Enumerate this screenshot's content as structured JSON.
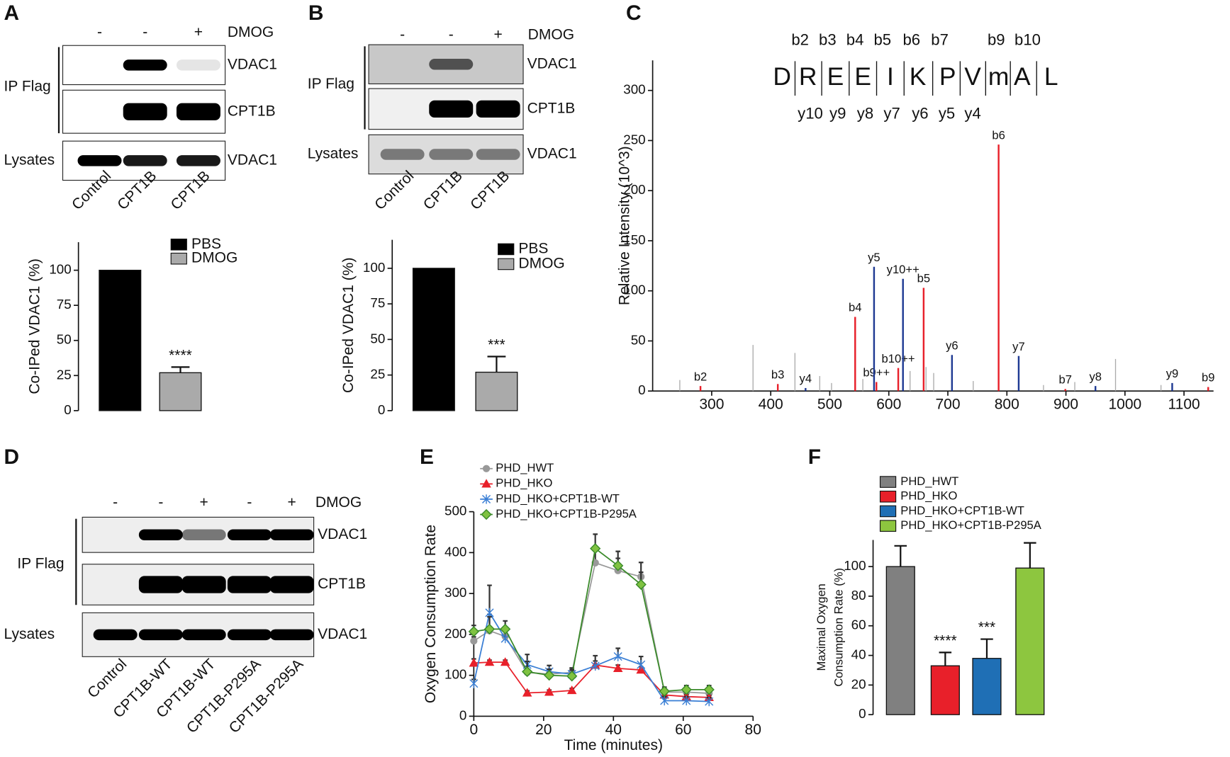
{
  "panel_labels": [
    "A",
    "B",
    "C",
    "D",
    "E",
    "F"
  ],
  "blots": [
    {
      "treatment_label": "DMOG",
      "treatments": [
        "-",
        "-",
        "+"
      ],
      "group_label": "IP Flag",
      "lysate_label": "Lysates",
      "ip_rows": [
        "VDAC1",
        "CPT1B"
      ],
      "lysate_rows": [
        "VDAC1"
      ],
      "lanes": [
        "Control",
        "CPT1B",
        "CPT1B"
      ]
    },
    {
      "treatment_label": "DMOG",
      "treatments": [
        "-",
        "-",
        "+"
      ],
      "group_label": "IP Flag",
      "lysate_label": "Lysates",
      "ip_rows": [
        "VDAC1",
        "CPT1B"
      ],
      "lysate_rows": [
        "VDAC1"
      ],
      "lanes": [
        "Control",
        "CPT1B",
        "CPT1B"
      ]
    },
    {
      "treatment_label": "DMOG",
      "treatments": [
        "-",
        "-",
        "+",
        "-",
        "+"
      ],
      "group_label": "IP Flag",
      "lysate_label": "Lysates",
      "ip_rows": [
        "VDAC1",
        "CPT1B"
      ],
      "lysate_rows": [
        "VDAC1"
      ],
      "lanes": [
        "Control",
        "CPT1B-WT",
        "CPT1B-WT",
        "CPT1B-P295A",
        "CPT1B-P295A"
      ]
    }
  ],
  "chart_data": [
    {
      "type": "bar",
      "ylabel": "Co-IPed VDAC1 (%)",
      "ylim": [
        0,
        120
      ],
      "yticks": [
        0,
        25,
        50,
        75,
        100
      ],
      "series": [
        {
          "name": "PBS",
          "color": "#000000",
          "values": [
            100
          ]
        },
        {
          "name": "DMOG",
          "color": "#aaaaaa",
          "values": [
            27
          ],
          "errors": [
            4
          ],
          "annotation": "****"
        }
      ]
    },
    {
      "type": "bar",
      "ylabel": "Co-IPed VDAC1 (%)",
      "ylim": [
        0,
        120
      ],
      "yticks": [
        0,
        25,
        50,
        75,
        100
      ],
      "series": [
        {
          "name": "PBS",
          "color": "#000000",
          "values": [
            100
          ]
        },
        {
          "name": "DMOG",
          "color": "#aaaaaa",
          "values": [
            27
          ],
          "errors": [
            11
          ],
          "annotation": "***"
        }
      ]
    },
    {
      "type": "stem",
      "ylabel": "Relative Intensity (10^3)",
      "xlim": [
        200,
        1150
      ],
      "xticks": [
        300,
        400,
        500,
        600,
        700,
        800,
        900,
        1000,
        1100
      ],
      "ylim": [
        0,
        330
      ],
      "yticks": [
        0,
        50,
        100,
        150,
        200,
        250,
        300
      ],
      "sequence": [
        "D",
        "R",
        "E",
        "E",
        "I",
        "K",
        "P",
        "V",
        "m",
        "A",
        "L"
      ],
      "highlight": 6,
      "highlight_color": "#e8202a",
      "b_labels": [
        "b2",
        "b3",
        "b4",
        "b5",
        "b6",
        "b7",
        "b9",
        "b10"
      ],
      "y_labels": [
        "y10",
        "y9",
        "y8",
        "y7",
        "y6",
        "y5",
        "y4"
      ],
      "series": [
        {
          "color": "#aaaaaa",
          "x": [
            246,
            370,
            441,
            483,
            503,
            556,
            636,
            663,
            676,
            743,
            862,
            915,
            984,
            1061
          ],
          "values": [
            11,
            46,
            38,
            15,
            8,
            12,
            20,
            24,
            18,
            10,
            6,
            9,
            32,
            6
          ]
        },
        {
          "color": "#e8202a",
          "x": [
            281,
            412,
            543,
            579,
            616,
            659,
            786,
            899,
            1141
          ],
          "values": [
            5,
            7,
            74,
            9,
            23,
            103,
            246,
            2,
            4
          ],
          "labels": [
            "b2",
            "b3",
            "b4",
            "b9++",
            "b10++",
            "b5",
            "b6",
            "b7",
            "b9"
          ]
        },
        {
          "color": "#1f3a93",
          "x": [
            459,
            575,
            624,
            707,
            820,
            950,
            1080
          ],
          "values": [
            3,
            124,
            112,
            36,
            35,
            5,
            8
          ],
          "labels": [
            "y4",
            "y5",
            "y10++",
            "y6",
            "y7",
            "y8",
            "y9"
          ]
        }
      ]
    },
    {
      "type": "line",
      "xlabel": "Time (minutes)",
      "ylabel": "Oxygen Consumption Rate",
      "xlim": [
        0,
        80
      ],
      "xticks": [
        0,
        20,
        40,
        60,
        80
      ],
      "ylim": [
        0,
        500
      ],
      "yticks": [
        0,
        100,
        200,
        300,
        400,
        500
      ],
      "x": [
        0,
        4.5,
        9,
        15.3,
        21.6,
        28.1,
        34.8,
        41.3,
        47.9,
        54.6,
        60.9,
        67.4
      ],
      "legend": "upper left",
      "series": [
        {
          "name": "PHD_HWT",
          "color": "#999999",
          "marker": "circle",
          "values": [
            184,
            209,
            195,
            107,
            103,
            107,
            375,
            356,
            341,
            59,
            59,
            56
          ],
          "errors": [
            10,
            40,
            20,
            15,
            10,
            10,
            40,
            30,
            35,
            8,
            8,
            8
          ]
        },
        {
          "name": "PHD_HKO",
          "color": "#e8202a",
          "marker": "triangle",
          "values": [
            130,
            132,
            132,
            57,
            59,
            63,
            125,
            117,
            113,
            52,
            48,
            46
          ],
          "errors": [
            10,
            5,
            5,
            5,
            5,
            5,
            10,
            8,
            8,
            5,
            5,
            5
          ]
        },
        {
          "name": "PHD_HKO+CPT1B-WT",
          "color": "#3a7fd5",
          "marker": "star",
          "values": [
            80,
            253,
            190,
            126,
            109,
            103,
            123,
            146,
            126,
            38,
            38,
            36
          ],
          "errors": [
            10,
            67,
            25,
            25,
            15,
            15,
            25,
            20,
            20,
            10,
            10,
            10
          ]
        },
        {
          "name": "PHD_HKO+CPT1B-P295A",
          "color": "#3a8a2a",
          "marker": "diamond",
          "values": [
            207,
            213,
            213,
            109,
            100,
            98,
            410,
            368,
            322,
            61,
            65,
            65
          ],
          "errors": [
            15,
            30,
            20,
            25,
            15,
            15,
            35,
            35,
            30,
            10,
            10,
            10
          ]
        }
      ]
    },
    {
      "type": "bar",
      "ylabel": [
        "Maximal Oxygen",
        "Consumption Rate (%)"
      ],
      "ylim": [
        0,
        118
      ],
      "yticks": [
        0,
        20,
        40,
        60,
        80,
        100
      ],
      "series": [
        {
          "name": "PHD_HWT",
          "color": "#808080",
          "values": [
            100
          ],
          "errors": [
            14
          ]
        },
        {
          "name": "PHD_HKO",
          "color": "#e8202a",
          "values": [
            33
          ],
          "errors": [
            9
          ],
          "annotation": "****"
        },
        {
          "name": "PHD_HKO+CPT1B-WT",
          "color": "#1f6fb5",
          "values": [
            38
          ],
          "errors": [
            13
          ],
          "annotation": "***"
        },
        {
          "name": "PHD_HKO+CPT1B-P295A",
          "color": "#8dc63f",
          "values": [
            99
          ],
          "errors": [
            17
          ]
        }
      ]
    }
  ]
}
